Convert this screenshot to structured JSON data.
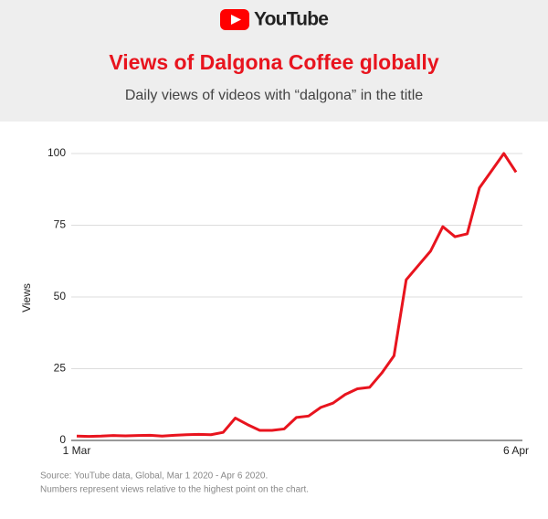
{
  "brand": "YouTube",
  "chart_data": {
    "type": "line",
    "title": "Views of Dalgona Coffee globally",
    "subtitle": "Daily views of videos with “dalgona” in the title",
    "y_label": "Views",
    "source": "Source: YouTube data, Global, Mar 1 2020 - Apr 6 2020.",
    "note": "Numbers represent views relative to the highest point on the chart.",
    "categories": [
      "1 Mar",
      null,
      null,
      null,
      null,
      null,
      null,
      null,
      null,
      null,
      null,
      null,
      null,
      null,
      null,
      null,
      null,
      null,
      null,
      null,
      null,
      null,
      null,
      null,
      null,
      null,
      null,
      null,
      null,
      null,
      null,
      null,
      null,
      null,
      null,
      null,
      "6 Apr"
    ],
    "series": [
      {
        "name": "Views",
        "color": "#e8141e",
        "values": [
          1.5,
          1.4,
          1.5,
          1.7,
          1.6,
          1.7,
          1.8,
          1.5,
          1.8,
          2,
          2.1,
          2,
          2.8,
          7.8,
          5.5,
          3.5,
          3.5,
          4,
          8,
          8.5,
          11.5,
          13,
          16,
          18,
          18.5,
          23.5,
          29.5,
          56,
          61,
          66,
          74.5,
          71,
          72,
          88,
          94,
          100,
          93.5
        ]
      }
    ],
    "ylim": [
      0,
      100
    ],
    "yticks": [
      0,
      25,
      50,
      75,
      100
    ],
    "grid": true
  }
}
